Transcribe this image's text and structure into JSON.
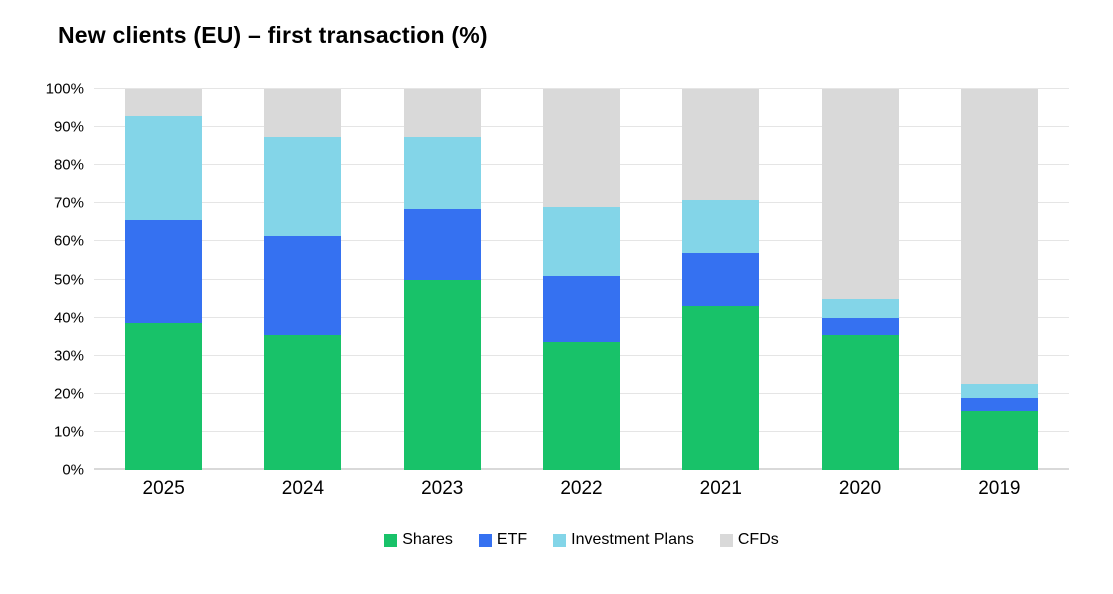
{
  "title": "New clients (EU) – first transaction (%)",
  "colors": {
    "shares": "#18c269",
    "etf": "#3571f1",
    "investment_plans": "#83d5e8",
    "cfds": "#d9d9d9",
    "gridline": "#e5e5e5",
    "axis_line": "#d9d9d9",
    "text": "#000000",
    "background": "#ffffff"
  },
  "chart_data": {
    "type": "bar",
    "stacked": true,
    "title": "New clients (EU) – first transaction (%)",
    "xlabel": "",
    "ylabel": "",
    "ylim": [
      0,
      100
    ],
    "grid": true,
    "legend_position": "bottom",
    "categories": [
      "2025",
      "2024",
      "2023",
      "2022",
      "2021",
      "2020",
      "2019"
    ],
    "series": [
      {
        "name": "Shares",
        "color": "#18c269",
        "values": [
          38.5,
          35.5,
          50.0,
          33.5,
          43.0,
          35.5,
          15.5
        ]
      },
      {
        "name": "ETF",
        "color": "#3571f1",
        "values": [
          27.0,
          26.0,
          18.5,
          17.5,
          14.0,
          4.5,
          3.5
        ]
      },
      {
        "name": "Investment Plans",
        "color": "#83d5e8",
        "values": [
          27.5,
          26.0,
          19.0,
          18.0,
          14.0,
          5.0,
          3.5
        ]
      },
      {
        "name": "CFDs",
        "color": "#d9d9d9",
        "values": [
          7.0,
          12.5,
          12.5,
          31.0,
          29.0,
          55.0,
          77.5
        ]
      }
    ],
    "ytick_labels_bottom_up": [
      "0%",
      "10%",
      "20%",
      "30%",
      "40%",
      "50%",
      "60%",
      "70%",
      "80%",
      "90%",
      "100%"
    ]
  }
}
